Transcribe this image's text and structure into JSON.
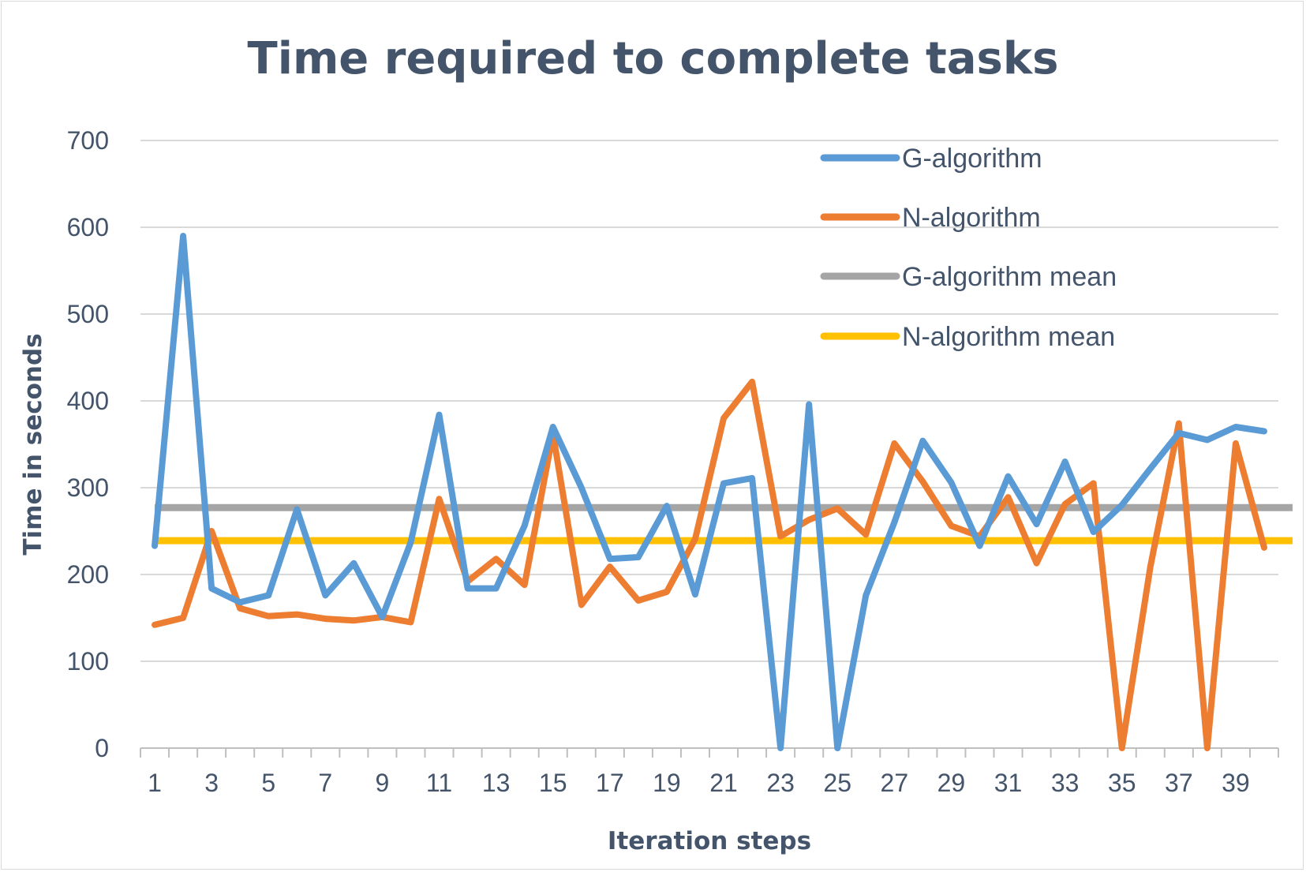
{
  "chart_data": {
    "type": "line",
    "title": "Time required to complete tasks",
    "xlabel": "Iteration steps",
    "ylabel": "Time in seconds",
    "ylim": [
      0,
      700
    ],
    "yticks": [
      "0",
      "100",
      "200",
      "300",
      "400",
      "500",
      "600",
      "700"
    ],
    "x": [
      1,
      2,
      3,
      4,
      5,
      6,
      7,
      8,
      9,
      10,
      11,
      12,
      13,
      14,
      15,
      16,
      17,
      18,
      19,
      20,
      21,
      22,
      23,
      24,
      25,
      26,
      27,
      28,
      29,
      30,
      31,
      32,
      33,
      34,
      35,
      36,
      37,
      38,
      39,
      40
    ],
    "xtick_labels": [
      "1",
      "3",
      "5",
      "7",
      "9",
      "11",
      "13",
      "15",
      "17",
      "19",
      "21",
      "23",
      "25",
      "27",
      "29",
      "31",
      "33",
      "35",
      "37",
      "39"
    ],
    "grid": true,
    "legend_position": "top-right",
    "series": [
      {
        "name": "G-algorithm",
        "color": "#5b9bd5",
        "values": [
          233,
          590,
          184,
          168,
          176,
          275,
          176,
          213,
          151,
          237,
          384,
          184,
          184,
          256,
          370,
          300,
          218,
          220,
          279,
          177,
          305,
          311,
          0,
          396,
          0,
          176,
          260,
          354,
          306,
          233,
          313,
          258,
          330,
          249,
          280,
          322,
          363,
          355,
          370,
          365
        ]
      },
      {
        "name": "N-algorithm",
        "color": "#ed7d31",
        "values": [
          142,
          150,
          250,
          161,
          152,
          154,
          149,
          147,
          151,
          145,
          287,
          192,
          218,
          188,
          362,
          165,
          209,
          170,
          180,
          241,
          380,
          422,
          244,
          263,
          276,
          246,
          351,
          307,
          256,
          244,
          289,
          213,
          281,
          305,
          0,
          209,
          374,
          0,
          351,
          231
        ]
      },
      {
        "name": "G-algorithm mean",
        "color": "#a5a5a5",
        "value": 277
      },
      {
        "name": "N-algorithm mean",
        "color": "#ffc000",
        "value": 239
      }
    ]
  }
}
